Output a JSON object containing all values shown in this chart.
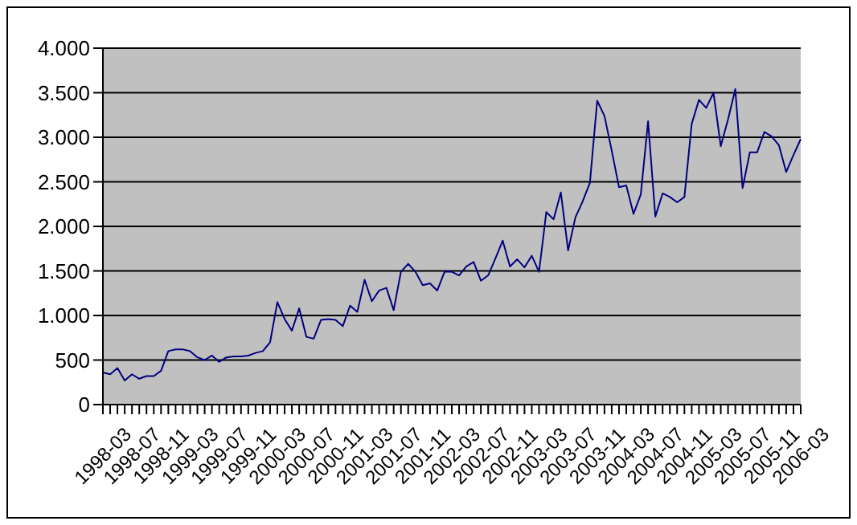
{
  "chart_data": {
    "type": "line",
    "categories": [
      "1998-03",
      null,
      null,
      null,
      "1998-07",
      null,
      null,
      null,
      "1998-11",
      null,
      null,
      null,
      "1999-03",
      null,
      null,
      null,
      "1999-07",
      null,
      null,
      null,
      "1999-11",
      null,
      null,
      null,
      "2000-03",
      null,
      null,
      null,
      "2000-07",
      null,
      null,
      null,
      "2000-11",
      null,
      null,
      null,
      "2001-03",
      null,
      null,
      null,
      "2001-07",
      null,
      null,
      null,
      "2001-11",
      null,
      null,
      null,
      "2002-03",
      null,
      null,
      null,
      "2002-07",
      null,
      null,
      null,
      "2002-11",
      null,
      null,
      null,
      "2003-03",
      null,
      null,
      null,
      "2003-07",
      null,
      null,
      null,
      "2003-11",
      null,
      null,
      null,
      "2004-03",
      null,
      null,
      null,
      "2004-07",
      null,
      null,
      null,
      "2004-11",
      null,
      null,
      null,
      "2005-03",
      null,
      null,
      null,
      "2005-07",
      null,
      null,
      null,
      "2005-11",
      null,
      null,
      null,
      "2006-03"
    ],
    "series": [
      {
        "color": "#000080",
        "values": [
          360,
          340,
          410,
          270,
          340,
          290,
          320,
          320,
          380,
          600,
          620,
          620,
          600,
          530,
          500,
          550,
          480,
          530,
          540,
          540,
          550,
          580,
          600,
          700,
          1150,
          960,
          830,
          1080,
          760,
          740,
          950,
          960,
          950,
          880,
          1110,
          1040,
          1400,
          1160,
          1280,
          1310,
          1060,
          1490,
          1580,
          1490,
          1340,
          1360,
          1280,
          1490,
          1490,
          1450,
          1550,
          1600,
          1390,
          1450,
          1640,
          1840,
          1550,
          1630,
          1540,
          1670,
          1490,
          2160,
          2080,
          2380,
          1730,
          2100,
          2280,
          2490,
          3410,
          3240,
          2850,
          2440,
          2460,
          2140,
          2360,
          3180,
          2110,
          2370,
          2330,
          2270,
          2330,
          3150,
          3420,
          3330,
          3500,
          2900,
          3200,
          3540,
          2430,
          2830,
          2830,
          3060,
          3010,
          2910,
          2610,
          2800,
          2980
        ]
      }
    ],
    "ylim": [
      0,
      4000
    ],
    "yticks": [
      0,
      {
        "value": 500,
        "label": "500"
      },
      {
        "value": 1000,
        "label": "1.000"
      },
      {
        "value": 1500,
        "label": "1.500"
      },
      {
        "value": 2000,
        "label": "2.000"
      },
      {
        "value": 2500,
        "label": "2.500"
      },
      {
        "value": 3000,
        "label": "3.000"
      },
      {
        "value": 3500,
        "label": "3.500"
      },
      {
        "value": 4000,
        "label": "4.000"
      }
    ],
    "grid": "y",
    "legend": false,
    "marker": "none",
    "line_style": "solid"
  }
}
